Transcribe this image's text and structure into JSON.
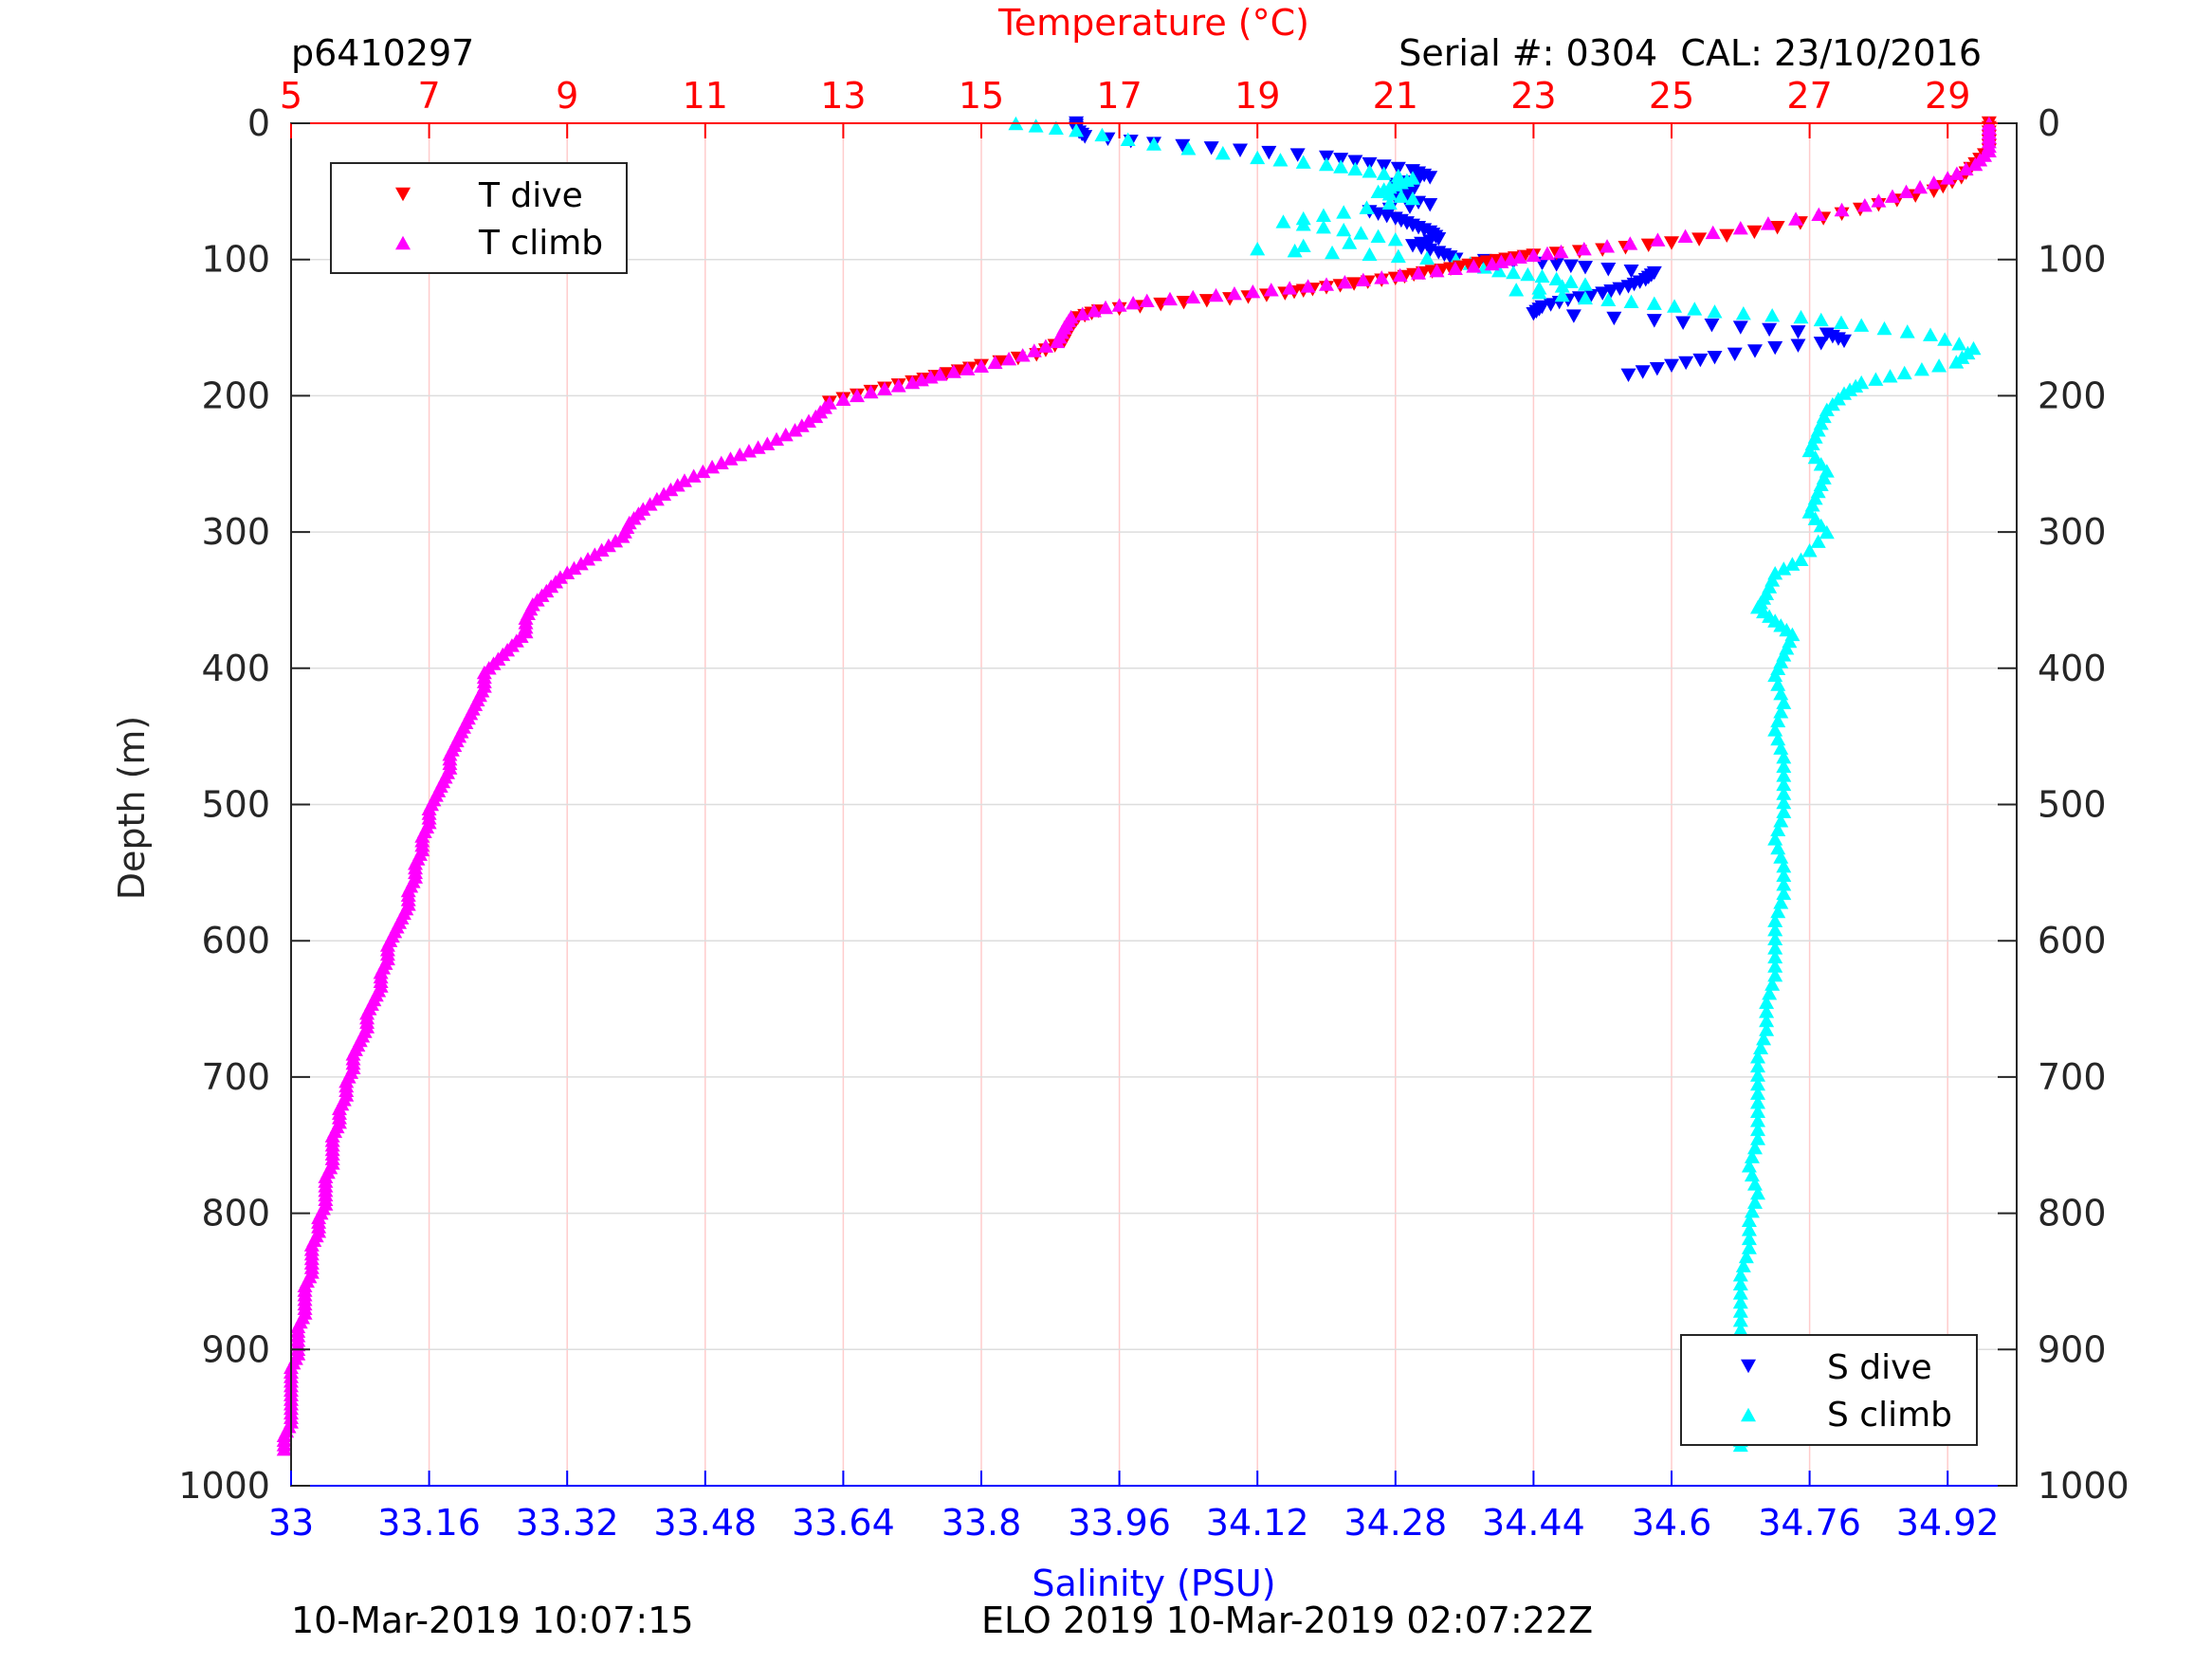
{
  "header": {
    "profile_id": "p6410297",
    "serial_cal": "Serial #: 0304  CAL: 23/10/2016"
  },
  "footer": {
    "left_timestamp": "10-Mar-2019 10:07:15",
    "mission_timestamp": "ELO 2019 10-Mar-2019 02:07:22Z"
  },
  "colors": {
    "temperature_axis": "#ff0000",
    "salinity_axis": "#0000ff",
    "t_dive": "#ff0000",
    "t_climb": "#ff00ff",
    "s_dive": "#0000ff",
    "s_climb": "#00ffff",
    "grid_temperature": "#ffcccc",
    "grid_depth": "#dddddd"
  },
  "chart_data": {
    "type": "scatter",
    "axes": {
      "temperature": {
        "label": "Temperature (°C)",
        "range": [
          5,
          30
        ],
        "ticks": [
          5,
          7,
          9,
          11,
          13,
          15,
          17,
          19,
          21,
          23,
          25,
          27,
          29
        ],
        "position": "top"
      },
      "salinity": {
        "label": "Salinity (PSU)",
        "range": [
          33,
          35
        ],
        "ticks": [
          33,
          33.16,
          33.32,
          33.48,
          33.64,
          33.8,
          33.96,
          34.12,
          34.28,
          34.44,
          34.6,
          34.76,
          34.92
        ],
        "position": "bottom"
      },
      "depth": {
        "label": "Depth (m)",
        "range": [
          0,
          1000
        ],
        "ticks": [
          0,
          100,
          200,
          300,
          400,
          500,
          600,
          700,
          800,
          900,
          1000
        ],
        "reversed": true,
        "position": "left and right"
      }
    },
    "grid": true,
    "legends": [
      {
        "placement": "top-left",
        "entries": [
          "T dive",
          "T climb"
        ]
      },
      {
        "placement": "bottom-right",
        "entries": [
          "S dive",
          "S climb"
        ]
      }
    ],
    "series": [
      {
        "name": "T dive",
        "axis": "temperature",
        "marker": "triangle-down",
        "color": "#ff0000",
        "points": [
          [
            29.6,
            0
          ],
          [
            29.6,
            10
          ],
          [
            29.6,
            20
          ],
          [
            29.4,
            30
          ],
          [
            29.2,
            40
          ],
          [
            28.8,
            50
          ],
          [
            28.0,
            60
          ],
          [
            27.2,
            70
          ],
          [
            26.2,
            80
          ],
          [
            25.0,
            88
          ],
          [
            24.0,
            93
          ],
          [
            23.0,
            97
          ],
          [
            22.6,
            100
          ],
          [
            22.2,
            103
          ],
          [
            21.8,
            107
          ],
          [
            21.4,
            110
          ],
          [
            21.0,
            114
          ],
          [
            20.4,
            118
          ],
          [
            19.8,
            122
          ],
          [
            19.4,
            125
          ],
          [
            18.6,
            129
          ],
          [
            17.6,
            133
          ],
          [
            16.7,
            138
          ],
          [
            16.4,
            143
          ],
          [
            16.3,
            150
          ],
          [
            16.2,
            160
          ],
          [
            15.8,
            170
          ],
          [
            15.0,
            178
          ],
          [
            14.5,
            184
          ],
          [
            14.0,
            190
          ],
          [
            13.4,
            197
          ],
          [
            12.8,
            205
          ]
        ]
      },
      {
        "name": "T climb",
        "axis": "temperature",
        "marker": "triangle-up",
        "color": "#ff00ff",
        "points": [
          [
            29.6,
            0
          ],
          [
            29.6,
            10
          ],
          [
            29.6,
            20
          ],
          [
            29.4,
            30
          ],
          [
            29.0,
            40
          ],
          [
            28.4,
            50
          ],
          [
            27.8,
            60
          ],
          [
            26.8,
            70
          ],
          [
            25.6,
            80
          ],
          [
            24.4,
            88
          ],
          [
            23.4,
            94
          ],
          [
            22.8,
            98
          ],
          [
            22.4,
            103
          ],
          [
            21.6,
            108
          ],
          [
            20.8,
            113
          ],
          [
            20.0,
            118
          ],
          [
            19.2,
            122
          ],
          [
            18.4,
            126
          ],
          [
            17.4,
            130
          ],
          [
            16.8,
            135
          ],
          [
            16.3,
            142
          ],
          [
            16.2,
            150
          ],
          [
            16.1,
            160
          ],
          [
            15.6,
            170
          ],
          [
            15.0,
            178
          ],
          [
            14.4,
            184
          ],
          [
            14.0,
            190
          ],
          [
            13.4,
            197
          ],
          [
            12.8,
            205
          ],
          [
            12.6,
            215
          ],
          [
            12.3,
            225
          ],
          [
            11.9,
            235
          ],
          [
            11.5,
            243
          ],
          [
            11.1,
            252
          ],
          [
            10.7,
            262
          ],
          [
            10.4,
            272
          ],
          [
            10.1,
            283
          ],
          [
            9.9,
            293
          ],
          [
            9.8,
            303
          ],
          [
            9.5,
            313
          ],
          [
            9.2,
            323
          ],
          [
            8.9,
            333
          ],
          [
            8.7,
            343
          ],
          [
            8.5,
            353
          ],
          [
            8.4,
            363
          ],
          [
            8.4,
            373
          ],
          [
            8.2,
            383
          ],
          [
            8.0,
            393
          ],
          [
            7.8,
            403
          ],
          [
            7.8,
            413
          ],
          [
            7.7,
            423
          ],
          [
            7.6,
            433
          ],
          [
            7.5,
            443
          ],
          [
            7.4,
            453
          ],
          [
            7.3,
            463
          ],
          [
            7.3,
            473
          ],
          [
            7.2,
            483
          ],
          [
            7.1,
            493
          ],
          [
            7.0,
            503
          ],
          [
            7.0,
            513
          ],
          [
            6.9,
            523
          ],
          [
            6.9,
            533
          ],
          [
            6.8,
            543
          ],
          [
            6.8,
            553
          ],
          [
            6.7,
            563
          ],
          [
            6.7,
            573
          ],
          [
            6.6,
            583
          ],
          [
            6.5,
            593
          ],
          [
            6.4,
            603
          ],
          [
            6.4,
            613
          ],
          [
            6.3,
            623
          ],
          [
            6.3,
            633
          ],
          [
            6.2,
            643
          ],
          [
            6.1,
            653
          ],
          [
            6.1,
            663
          ],
          [
            6.0,
            673
          ],
          [
            5.9,
            683
          ],
          [
            5.9,
            693
          ],
          [
            5.8,
            703
          ],
          [
            5.8,
            713
          ],
          [
            5.7,
            723
          ],
          [
            5.7,
            733
          ],
          [
            5.6,
            743
          ],
          [
            5.6,
            753
          ],
          [
            5.6,
            763
          ],
          [
            5.5,
            773
          ],
          [
            5.5,
            783
          ],
          [
            5.5,
            793
          ],
          [
            5.4,
            803
          ],
          [
            5.4,
            813
          ],
          [
            5.3,
            823
          ],
          [
            5.3,
            833
          ],
          [
            5.3,
            843
          ],
          [
            5.2,
            853
          ],
          [
            5.2,
            863
          ],
          [
            5.2,
            873
          ],
          [
            5.1,
            883
          ],
          [
            5.1,
            893
          ],
          [
            5.1,
            903
          ],
          [
            5.0,
            913
          ],
          [
            5.0,
            923
          ],
          [
            5.0,
            933
          ],
          [
            5.0,
            943
          ],
          [
            5.0,
            953
          ],
          [
            4.9,
            963
          ],
          [
            4.9,
            973
          ]
        ]
      },
      {
        "name": "S dive",
        "axis": "salinity",
        "marker": "triangle-down",
        "color": "#0000ff",
        "points": [
          [
            33.91,
            0
          ],
          [
            33.91,
            5
          ],
          [
            33.92,
            10
          ],
          [
            34.0,
            15
          ],
          [
            34.1,
            20
          ],
          [
            34.2,
            25
          ],
          [
            34.25,
            30
          ],
          [
            34.3,
            35
          ],
          [
            34.32,
            40
          ],
          [
            34.28,
            45
          ],
          [
            34.3,
            50
          ],
          [
            34.28,
            55
          ],
          [
            34.32,
            60
          ],
          [
            34.25,
            65
          ],
          [
            34.28,
            70
          ],
          [
            34.3,
            75
          ],
          [
            34.32,
            80
          ],
          [
            34.33,
            85
          ],
          [
            34.3,
            90
          ],
          [
            34.33,
            95
          ],
          [
            34.35,
            100
          ],
          [
            34.45,
            103
          ],
          [
            34.5,
            106
          ],
          [
            34.58,
            110
          ],
          [
            34.57,
            115
          ],
          [
            34.55,
            120
          ],
          [
            34.52,
            125
          ],
          [
            34.48,
            130
          ],
          [
            34.45,
            135
          ],
          [
            34.44,
            140
          ],
          [
            34.58,
            145
          ],
          [
            34.68,
            150
          ],
          [
            34.78,
            155
          ],
          [
            34.8,
            160
          ],
          [
            34.72,
            165
          ],
          [
            34.65,
            172
          ],
          [
            34.6,
            178
          ],
          [
            34.55,
            185
          ]
        ]
      },
      {
        "name": "S climb",
        "axis": "salinity",
        "marker": "triangle-up",
        "color": "#00ffff",
        "points": [
          [
            33.84,
            0
          ],
          [
            33.91,
            5
          ],
          [
            34.0,
            15
          ],
          [
            34.12,
            25
          ],
          [
            34.2,
            30
          ],
          [
            34.25,
            35
          ],
          [
            34.3,
            40
          ],
          [
            34.28,
            45
          ],
          [
            34.26,
            50
          ],
          [
            34.3,
            55
          ],
          [
            34.22,
            65
          ],
          [
            34.15,
            72
          ],
          [
            34.22,
            78
          ],
          [
            34.28,
            85
          ],
          [
            34.12,
            92
          ],
          [
            34.25,
            96
          ],
          [
            34.35,
            100
          ],
          [
            34.4,
            108
          ],
          [
            34.45,
            112
          ],
          [
            34.5,
            118
          ],
          [
            34.42,
            122
          ],
          [
            34.5,
            128
          ],
          [
            34.58,
            132
          ],
          [
            34.65,
            138
          ],
          [
            34.75,
            142
          ],
          [
            34.82,
            148
          ],
          [
            34.9,
            155
          ],
          [
            34.95,
            165
          ],
          [
            34.93,
            175
          ],
          [
            34.87,
            183
          ],
          [
            34.82,
            190
          ],
          [
            34.8,
            198
          ],
          [
            34.78,
            210
          ],
          [
            34.77,
            225
          ],
          [
            34.76,
            240
          ],
          [
            34.78,
            255
          ],
          [
            34.77,
            270
          ],
          [
            34.76,
            285
          ],
          [
            34.78,
            300
          ],
          [
            34.75,
            320
          ],
          [
            34.72,
            330
          ],
          [
            34.71,
            345
          ],
          [
            34.7,
            355
          ],
          [
            34.72,
            365
          ],
          [
            34.74,
            375
          ],
          [
            34.73,
            390
          ],
          [
            34.72,
            405
          ],
          [
            34.73,
            425
          ],
          [
            34.72,
            445
          ],
          [
            34.73,
            465
          ],
          [
            34.73,
            485
          ],
          [
            34.73,
            505
          ],
          [
            34.72,
            525
          ],
          [
            34.73,
            545
          ],
          [
            34.73,
            565
          ],
          [
            34.72,
            585
          ],
          [
            34.72,
            605
          ],
          [
            34.72,
            625
          ],
          [
            34.71,
            645
          ],
          [
            34.71,
            665
          ],
          [
            34.7,
            685
          ],
          [
            34.7,
            705
          ],
          [
            34.7,
            725
          ],
          [
            34.7,
            745
          ],
          [
            34.69,
            765
          ],
          [
            34.7,
            785
          ],
          [
            34.69,
            805
          ],
          [
            34.69,
            825
          ],
          [
            34.68,
            845
          ],
          [
            34.68,
            865
          ],
          [
            34.68,
            885
          ],
          [
            34.68,
            905
          ],
          [
            34.68,
            925
          ],
          [
            34.69,
            945
          ],
          [
            34.68,
            960
          ],
          [
            34.68,
            970
          ]
        ]
      }
    ]
  }
}
